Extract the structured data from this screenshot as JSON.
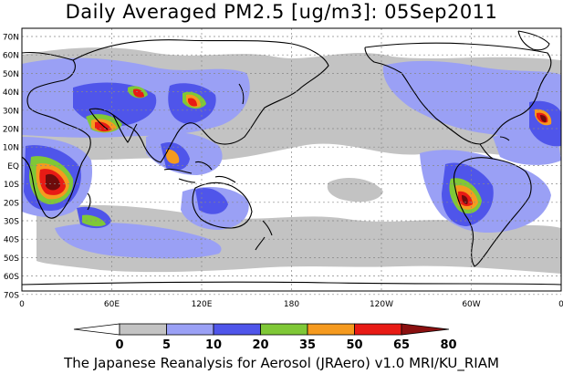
{
  "title": "Daily Averaged PM2.5 [ug/m3]: 05Sep2011",
  "footer": "The Japanese Reanalysis for Aerosol (JRAero) v1.0 MRI/KU_RIAM",
  "lat_labels": [
    "70N",
    "60N",
    "50N",
    "40N",
    "30N",
    "20N",
    "10N",
    "EQ",
    "10S",
    "20S",
    "30S",
    "40S",
    "50S",
    "60S",
    "70S"
  ],
  "lon_labels": [
    "0",
    "60E",
    "120E",
    "180",
    "120W",
    "60W",
    "0"
  ],
  "colorbar": {
    "tick_labels": [
      "0",
      "5",
      "10",
      "20",
      "35",
      "50",
      "65",
      "80"
    ],
    "colors": [
      "#ffffff",
      "#c3c3c3",
      "#9aa0f5",
      "#4f55ea",
      "#7fc837",
      "#f59a1f",
      "#e81b15",
      "#8a1010"
    ]
  },
  "palette": {
    "gray": "#c3c3c3",
    "lightblue": "#9aa0f5",
    "blue": "#4f55ea",
    "green": "#7fc837",
    "orange": "#f59a1f",
    "red": "#e81b15",
    "darkred": "#6e0b0b"
  }
}
